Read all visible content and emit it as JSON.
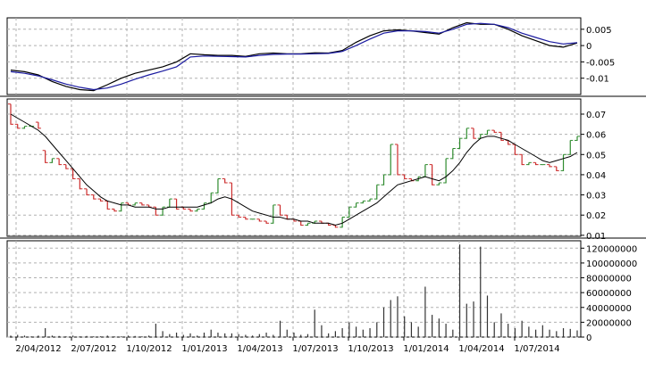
{
  "chart_data": [
    {
      "panel": "macd",
      "type": "line",
      "ylim": [
        -0.015,
        0.0085
      ],
      "yticks": [
        "0.005",
        "0",
        "-0.005",
        "-0.01"
      ],
      "ytick_values": [
        0.005,
        0,
        -0.005,
        -0.01
      ],
      "grid": true,
      "series": [
        {
          "color": "#000000",
          "values": [
            [
              0,
              -0.0075
            ],
            [
              2,
              -0.008
            ],
            [
              4,
              -0.009
            ],
            [
              6,
              -0.011
            ],
            [
              8,
              -0.0125
            ],
            [
              10,
              -0.0135
            ],
            [
              12,
              -0.0138
            ],
            [
              14,
              -0.012
            ],
            [
              16,
              -0.01
            ],
            [
              18,
              -0.0085
            ],
            [
              20,
              -0.0075
            ],
            [
              22,
              -0.0065
            ],
            [
              24,
              -0.005
            ],
            [
              26,
              -0.0025
            ],
            [
              28,
              -0.0028
            ],
            [
              30,
              -0.003
            ],
            [
              32,
              -0.003
            ],
            [
              34,
              -0.0033
            ],
            [
              36,
              -0.0025
            ],
            [
              38,
              -0.0023
            ],
            [
              40,
              -0.0025
            ],
            [
              42,
              -0.0025
            ],
            [
              44,
              -0.0022
            ],
            [
              46,
              -0.0023
            ],
            [
              48,
              -0.0015
            ],
            [
              50,
              0.001
            ],
            [
              52,
              0.003
            ],
            [
              54,
              0.0045
            ],
            [
              56,
              0.0048
            ],
            [
              58,
              0.0045
            ],
            [
              60,
              0.004
            ],
            [
              62,
              0.0035
            ],
            [
              64,
              0.0055
            ],
            [
              66,
              0.007
            ],
            [
              68,
              0.0065
            ],
            [
              70,
              0.0065
            ],
            [
              72,
              0.005
            ],
            [
              74,
              0.003
            ],
            [
              76,
              0.0015
            ],
            [
              78,
              0.0
            ],
            [
              80,
              -0.0005
            ],
            [
              82,
              0.0008
            ]
          ]
        },
        {
          "color": "#1a1aa0",
          "values": [
            [
              0,
              -0.008
            ],
            [
              2,
              -0.0085
            ],
            [
              4,
              -0.0093
            ],
            [
              6,
              -0.0105
            ],
            [
              8,
              -0.0118
            ],
            [
              10,
              -0.0128
            ],
            [
              12,
              -0.0135
            ],
            [
              14,
              -0.013
            ],
            [
              16,
              -0.0118
            ],
            [
              18,
              -0.0103
            ],
            [
              20,
              -0.009
            ],
            [
              22,
              -0.0078
            ],
            [
              24,
              -0.0065
            ],
            [
              26,
              -0.0035
            ],
            [
              28,
              -0.0032
            ],
            [
              30,
              -0.0033
            ],
            [
              32,
              -0.0034
            ],
            [
              34,
              -0.0035
            ],
            [
              36,
              -0.003
            ],
            [
              38,
              -0.0027
            ],
            [
              40,
              -0.0026
            ],
            [
              42,
              -0.0026
            ],
            [
              44,
              -0.0025
            ],
            [
              46,
              -0.0024
            ],
            [
              48,
              -0.0018
            ],
            [
              50,
              0.0
            ],
            [
              52,
              0.002
            ],
            [
              54,
              0.0038
            ],
            [
              56,
              0.0045
            ],
            [
              58,
              0.0045
            ],
            [
              60,
              0.0043
            ],
            [
              62,
              0.0038
            ],
            [
              64,
              0.005
            ],
            [
              66,
              0.0065
            ],
            [
              68,
              0.0068
            ],
            [
              70,
              0.0065
            ],
            [
              72,
              0.0055
            ],
            [
              74,
              0.0038
            ],
            [
              76,
              0.0025
            ],
            [
              78,
              0.0012
            ],
            [
              80,
              0.0005
            ],
            [
              82,
              0.0009
            ]
          ]
        }
      ]
    },
    {
      "panel": "price",
      "type": "ohlc",
      "ylim": [
        0.0095,
        0.0775
      ],
      "yticks": [
        "0.07",
        "0.06",
        "0.05",
        "0.04",
        "0.03",
        "0.02",
        "0.01"
      ],
      "ytick_values": [
        0.07,
        0.06,
        0.05,
        0.04,
        0.03,
        0.02,
        0.01
      ],
      "grid": true,
      "x_count": 83,
      "up_color": "#2e8b2e",
      "down_color": "#cc2a2a",
      "ma_color": "#000000",
      "close": [
        0.065,
        0.063,
        0.064,
        0.064,
        0.063,
        0.046,
        0.048,
        0.045,
        0.043,
        0.038,
        0.033,
        0.03,
        0.028,
        0.027,
        0.023,
        0.022,
        0.026,
        0.025,
        0.026,
        0.025,
        0.024,
        0.02,
        0.024,
        0.028,
        0.023,
        0.023,
        0.022,
        0.023,
        0.026,
        0.031,
        0.038,
        0.036,
        0.02,
        0.019,
        0.018,
        0.018,
        0.017,
        0.016,
        0.025,
        0.02,
        0.018,
        0.017,
        0.015,
        0.016,
        0.017,
        0.016,
        0.015,
        0.014,
        0.019,
        0.024,
        0.026,
        0.027,
        0.028,
        0.035,
        0.04,
        0.055,
        0.04,
        0.038,
        0.037,
        0.039,
        0.045,
        0.035,
        0.036,
        0.048,
        0.053,
        0.058,
        0.063,
        0.058,
        0.06,
        0.062,
        0.061,
        0.057,
        0.055,
        0.05,
        0.045,
        0.046,
        0.045,
        0.045,
        0.044,
        0.042,
        0.05,
        0.057,
        0.059
      ],
      "open": [
        0.075,
        0.065,
        0.063,
        0.064,
        0.066,
        0.052,
        0.046,
        0.048,
        0.045,
        0.043,
        0.038,
        0.033,
        0.03,
        0.028,
        0.027,
        0.023,
        0.022,
        0.026,
        0.025,
        0.026,
        0.025,
        0.024,
        0.02,
        0.024,
        0.028,
        0.024,
        0.023,
        0.022,
        0.023,
        0.026,
        0.031,
        0.038,
        0.036,
        0.02,
        0.019,
        0.018,
        0.018,
        0.017,
        0.016,
        0.025,
        0.02,
        0.018,
        0.017,
        0.015,
        0.016,
        0.017,
        0.016,
        0.015,
        0.014,
        0.019,
        0.024,
        0.026,
        0.027,
        0.028,
        0.035,
        0.04,
        0.055,
        0.04,
        0.038,
        0.037,
        0.039,
        0.045,
        0.035,
        0.036,
        0.048,
        0.053,
        0.058,
        0.063,
        0.058,
        0.06,
        0.062,
        0.061,
        0.057,
        0.055,
        0.05,
        0.045,
        0.046,
        0.045,
        0.045,
        0.044,
        0.042,
        0.05,
        0.057
      ],
      "ma": [
        0.07,
        0.068,
        0.066,
        0.064,
        0.062,
        0.059,
        0.055,
        0.051,
        0.047,
        0.043,
        0.039,
        0.035,
        0.032,
        0.029,
        0.027,
        0.026,
        0.025,
        0.025,
        0.024,
        0.024,
        0.024,
        0.023,
        0.023,
        0.024,
        0.024,
        0.024,
        0.024,
        0.024,
        0.025,
        0.026,
        0.028,
        0.029,
        0.028,
        0.026,
        0.024,
        0.022,
        0.021,
        0.02,
        0.019,
        0.019,
        0.018,
        0.018,
        0.017,
        0.017,
        0.016,
        0.016,
        0.016,
        0.015,
        0.016,
        0.018,
        0.02,
        0.022,
        0.024,
        0.026,
        0.029,
        0.032,
        0.035,
        0.036,
        0.037,
        0.038,
        0.039,
        0.038,
        0.037,
        0.039,
        0.042,
        0.046,
        0.051,
        0.055,
        0.058,
        0.059,
        0.059,
        0.058,
        0.057,
        0.055,
        0.053,
        0.051,
        0.049,
        0.047,
        0.046,
        0.047,
        0.048,
        0.049,
        0.051
      ]
    },
    {
      "panel": "volume",
      "type": "bar",
      "ylim": [
        0,
        130000000
      ],
      "yticks": [
        "120000000",
        "100000000",
        "80000000",
        "60000000",
        "40000000",
        "20000000",
        "0"
      ],
      "ytick_values": [
        120000000,
        100000000,
        80000000,
        60000000,
        40000000,
        20000000,
        0
      ],
      "grid": true,
      "bar_color": "#333333",
      "x_ticks": [
        "2/04/2012",
        "2/07/2012",
        "1/10/2012",
        "1/01/2013",
        "1/04/2013",
        "1/07/2013",
        "1/10/2013",
        "1/01/2014",
        "1/04/2014",
        "1/07/2014"
      ],
      "values": [
        2000000,
        3000000,
        2000000,
        1000000,
        2000000,
        12000000,
        2000000,
        1500000,
        1000000,
        2000000,
        1000000,
        1500000,
        1000000,
        1000000,
        2000000,
        1000000,
        1000000,
        2000000,
        1500000,
        1000000,
        2000000,
        18000000,
        8000000,
        4000000,
        6000000,
        3000000,
        5000000,
        2000000,
        6000000,
        10000000,
        6000000,
        5000000,
        5000000,
        4000000,
        3000000,
        2000000,
        4000000,
        6000000,
        3000000,
        22000000,
        10000000,
        6000000,
        3000000,
        4000000,
        37000000,
        16000000,
        5000000,
        8000000,
        12000000,
        20000000,
        14000000,
        10000000,
        12000000,
        20000000,
        40000000,
        50000000,
        55000000,
        28000000,
        20000000,
        14000000,
        68000000,
        30000000,
        25000000,
        18000000,
        10000000,
        125000000,
        45000000,
        48000000,
        122000000,
        56000000,
        20000000,
        32000000,
        18000000,
        12000000,
        22000000,
        14000000,
        10000000,
        16000000,
        10000000,
        8000000,
        12000000,
        11000000,
        9000000
      ]
    }
  ]
}
